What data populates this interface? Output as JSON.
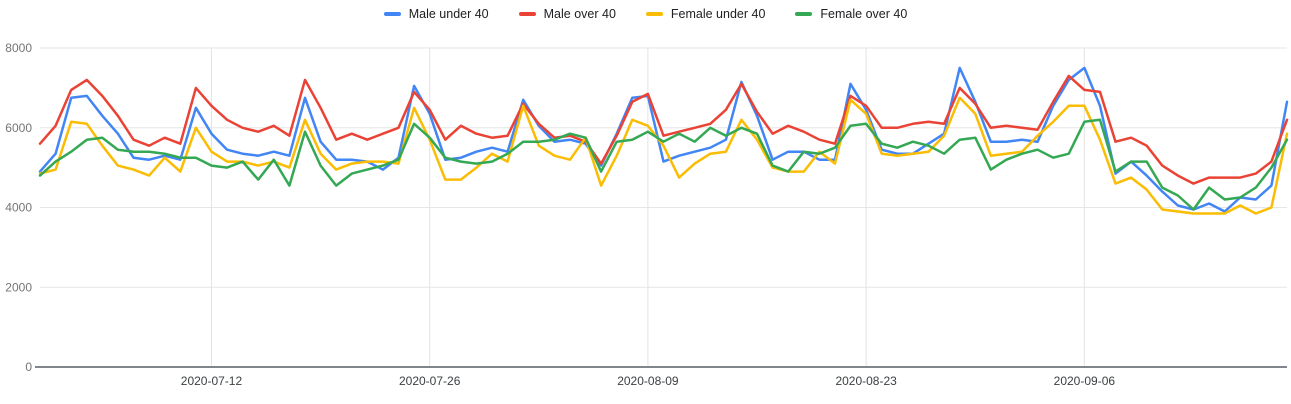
{
  "chart_data": {
    "type": "line",
    "title": "",
    "xlabel": "",
    "ylabel": "",
    "ylim": [
      0,
      8000
    ],
    "yticks": [
      0,
      2000,
      4000,
      6000,
      8000
    ],
    "grid": true,
    "legend_position": "top-center",
    "xtick_labels": [
      "2020-07-12",
      "2020-07-26",
      "2020-08-09",
      "2020-08-23",
      "2020-09-06"
    ],
    "x": [
      "2020-07-01",
      "2020-07-02",
      "2020-07-03",
      "2020-07-04",
      "2020-07-05",
      "2020-07-06",
      "2020-07-07",
      "2020-07-08",
      "2020-07-09",
      "2020-07-10",
      "2020-07-11",
      "2020-07-12",
      "2020-07-13",
      "2020-07-14",
      "2020-07-15",
      "2020-07-16",
      "2020-07-17",
      "2020-07-18",
      "2020-07-19",
      "2020-07-20",
      "2020-07-21",
      "2020-07-22",
      "2020-07-23",
      "2020-07-24",
      "2020-07-25",
      "2020-07-26",
      "2020-07-27",
      "2020-07-28",
      "2020-07-29",
      "2020-07-30",
      "2020-07-31",
      "2020-08-01",
      "2020-08-02",
      "2020-08-03",
      "2020-08-04",
      "2020-08-05",
      "2020-08-06",
      "2020-08-07",
      "2020-08-08",
      "2020-08-09",
      "2020-08-10",
      "2020-08-11",
      "2020-08-12",
      "2020-08-13",
      "2020-08-14",
      "2020-08-15",
      "2020-08-16",
      "2020-08-17",
      "2020-08-18",
      "2020-08-19",
      "2020-08-20",
      "2020-08-21",
      "2020-08-22",
      "2020-08-23",
      "2020-08-24",
      "2020-08-25",
      "2020-08-26",
      "2020-08-27",
      "2020-08-28",
      "2020-08-29",
      "2020-08-30",
      "2020-08-31",
      "2020-09-01",
      "2020-09-02",
      "2020-09-03",
      "2020-09-04",
      "2020-09-05",
      "2020-09-06",
      "2020-09-07",
      "2020-09-08",
      "2020-09-09",
      "2020-09-10",
      "2020-09-11",
      "2020-09-12",
      "2020-09-13",
      "2020-09-14",
      "2020-09-15",
      "2020-09-16",
      "2020-09-17",
      "2020-09-18",
      "2020-09-19"
    ],
    "series": [
      {
        "name": "Male under 40",
        "color": "#4285f4",
        "values": [
          4900,
          5350,
          6750,
          6800,
          6300,
          5850,
          5250,
          5200,
          5300,
          5200,
          6500,
          5850,
          5450,
          5350,
          5300,
          5400,
          5300,
          6750,
          5650,
          5200,
          5200,
          5150,
          4950,
          5250,
          7050,
          6350,
          5200,
          5250,
          5400,
          5500,
          5400,
          6700,
          6050,
          5650,
          5700,
          5600,
          5050,
          5850,
          6750,
          6800,
          5150,
          5300,
          5400,
          5500,
          5700,
          7150,
          6300,
          5200,
          5400,
          5400,
          5200,
          5200,
          7100,
          6450,
          5450,
          5350,
          5350,
          5600,
          5850,
          7500,
          6650,
          5650,
          5650,
          5700,
          5650,
          6550,
          7200,
          7500,
          6550,
          4850,
          5150,
          4800,
          4400,
          4050,
          3950,
          4100,
          3900,
          4250,
          4200,
          4550,
          6650
        ]
      },
      {
        "name": "Male over 40",
        "color": "#ea4335",
        "values": [
          5600,
          6050,
          6950,
          7200,
          6800,
          6300,
          5700,
          5550,
          5750,
          5600,
          7000,
          6550,
          6200,
          6000,
          5900,
          6050,
          5800,
          7200,
          6500,
          5700,
          5850,
          5700,
          5850,
          6000,
          6900,
          6450,
          5700,
          6050,
          5850,
          5750,
          5800,
          6600,
          6100,
          5750,
          5800,
          5650,
          5100,
          5800,
          6650,
          6850,
          5800,
          5900,
          6000,
          6100,
          6450,
          7100,
          6400,
          5850,
          6050,
          5900,
          5700,
          5600,
          6800,
          6550,
          6000,
          6000,
          6100,
          6150,
          6100,
          7000,
          6600,
          6000,
          6050,
          6000,
          5950,
          6650,
          7300,
          6950,
          6900,
          5650,
          5750,
          5550,
          5050,
          4800,
          4600,
          4750,
          4750,
          4750,
          4850,
          5150,
          6200
        ]
      },
      {
        "name": "Female under 40",
        "color": "#fbbc04",
        "values": [
          4850,
          4950,
          6150,
          6100,
          5550,
          5050,
          4950,
          4800,
          5250,
          4900,
          6000,
          5400,
          5150,
          5150,
          5050,
          5150,
          5000,
          6200,
          5350,
          4950,
          5100,
          5150,
          5150,
          5100,
          6500,
          5700,
          4700,
          4700,
          5000,
          5350,
          5150,
          6550,
          5550,
          5300,
          5200,
          5750,
          4550,
          5300,
          6200,
          6050,
          5550,
          4750,
          5100,
          5350,
          5400,
          6200,
          5700,
          5000,
          4900,
          4900,
          5400,
          5100,
          6700,
          6350,
          5350,
          5300,
          5350,
          5400,
          5800,
          6750,
          6350,
          5300,
          5350,
          5400,
          5800,
          6150,
          6550,
          6550,
          5700,
          4600,
          4750,
          4450,
          3950,
          3900,
          3850,
          3850,
          3850,
          4050,
          3850,
          4000,
          5850
        ]
      },
      {
        "name": "Female over 40",
        "color": "#34a853",
        "values": [
          4800,
          5150,
          5400,
          5700,
          5750,
          5450,
          5400,
          5400,
          5350,
          5250,
          5250,
          5050,
          5000,
          5150,
          4700,
          5200,
          4550,
          5900,
          5050,
          4550,
          4850,
          4950,
          5050,
          5200,
          6100,
          5750,
          5250,
          5150,
          5100,
          5150,
          5350,
          5650,
          5650,
          5700,
          5850,
          5750,
          4900,
          5650,
          5700,
          5900,
          5650,
          5850,
          5650,
          6000,
          5800,
          6000,
          5850,
          5050,
          4900,
          5400,
          5350,
          5500,
          6050,
          6100,
          5600,
          5500,
          5650,
          5550,
          5350,
          5700,
          5750,
          4950,
          5200,
          5350,
          5450,
          5250,
          5350,
          6150,
          6200,
          4900,
          5150,
          5150,
          4500,
          4300,
          3950,
          4500,
          4200,
          4250,
          4500,
          5000,
          5700
        ]
      }
    ]
  }
}
